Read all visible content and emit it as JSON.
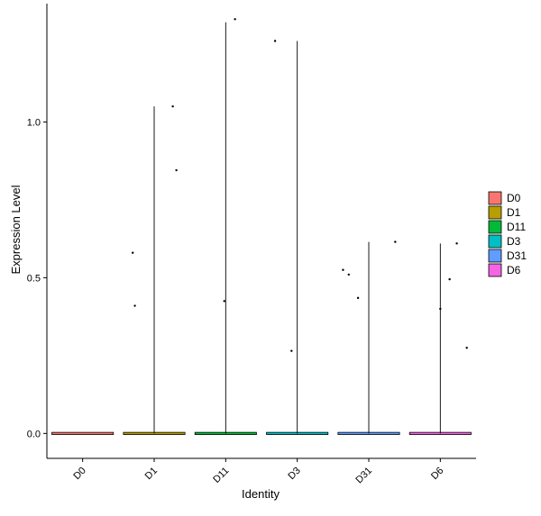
{
  "chart_data": {
    "type": "violin",
    "title": "",
    "xlabel": "Identity",
    "ylabel": "Expression Level",
    "categories": [
      "D0",
      "D1",
      "D11",
      "D3",
      "D31",
      "D6"
    ],
    "ylim": [
      -0.08,
      1.38
    ],
    "yticks": [
      0.0,
      0.5,
      1.0
    ],
    "ytick_labels": [
      "0.0",
      "0.5",
      "1.0"
    ],
    "grid": false,
    "legend_position": "right",
    "series": [
      {
        "name": "D0",
        "color": "#F8766D",
        "max": 0.0,
        "points": []
      },
      {
        "name": "D1",
        "color": "#B79F00",
        "max": 1.05,
        "points": [
          {
            "dx": -0.3,
            "y": 0.58
          },
          {
            "dx": -0.27,
            "y": 0.41
          },
          {
            "dx": 0.26,
            "y": 1.05
          },
          {
            "dx": 0.31,
            "y": 0.845
          }
        ]
      },
      {
        "name": "D11",
        "color": "#00BA38",
        "max": 1.32,
        "points": [
          {
            "dx": 0.13,
            "y": 1.33
          },
          {
            "dx": -0.02,
            "y": 0.425
          }
        ]
      },
      {
        "name": "D3",
        "color": "#00BFC4",
        "max": 1.26,
        "points": [
          {
            "dx": -0.31,
            "y": 1.26
          },
          {
            "dx": -0.08,
            "y": 0.265
          }
        ]
      },
      {
        "name": "D31",
        "color": "#619CFF",
        "max": 0.615,
        "points": [
          {
            "dx": 0.37,
            "y": 0.615
          },
          {
            "dx": -0.36,
            "y": 0.525
          },
          {
            "dx": -0.28,
            "y": 0.51
          },
          {
            "dx": -0.15,
            "y": 0.435
          }
        ]
      },
      {
        "name": "D6",
        "color": "#F564E3",
        "max": 0.61,
        "points": [
          {
            "dx": 0.23,
            "y": 0.61
          },
          {
            "dx": 0.13,
            "y": 0.495
          },
          {
            "dx": 0.0,
            "y": 0.4
          },
          {
            "dx": 0.37,
            "y": 0.275
          }
        ]
      }
    ]
  }
}
